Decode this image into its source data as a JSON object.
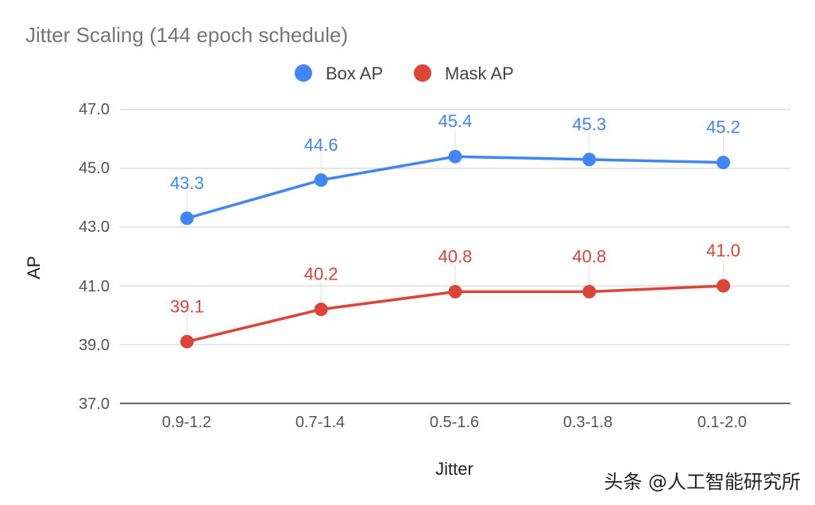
{
  "chart_data": {
    "type": "line",
    "title": "Jitter Scaling (144 epoch schedule)",
    "xlabel": "Jitter",
    "ylabel": "AP",
    "categories": [
      "0.9-1.2",
      "0.7-1.4",
      "0.5-1.6",
      "0.3-1.8",
      "0.1-2.0"
    ],
    "ylim": [
      37.0,
      47.0
    ],
    "yticks": [
      37.0,
      39.0,
      41.0,
      43.0,
      45.0,
      47.0
    ],
    "yticks_text": [
      "37.0",
      "39.0",
      "41.0",
      "43.0",
      "45.0",
      "47.0"
    ],
    "legend_position": "top-center",
    "grid": true,
    "series": [
      {
        "name": "Box AP",
        "color": "#4285F4",
        "values": [
          43.3,
          44.6,
          45.4,
          45.3,
          45.2
        ],
        "labels": [
          "43.3",
          "44.6",
          "45.4",
          "45.3",
          "45.2"
        ]
      },
      {
        "name": "Mask AP",
        "color": "#DB4437",
        "values": [
          39.1,
          40.2,
          40.8,
          40.8,
          41.0
        ],
        "labels": [
          "39.1",
          "40.2",
          "40.8",
          "40.8",
          "41.0"
        ]
      }
    ]
  },
  "watermark": "头条 @人工智能研究所"
}
